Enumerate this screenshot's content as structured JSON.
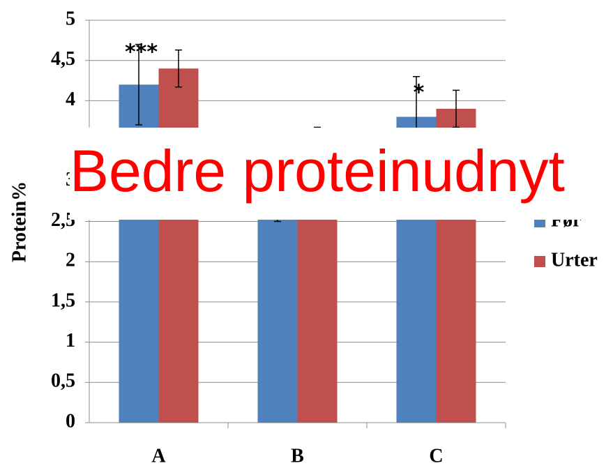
{
  "chart_data": {
    "type": "bar",
    "y_label": "Protein%",
    "categories": [
      "A",
      "B",
      "C"
    ],
    "series": [
      {
        "name": "Før",
        "color": "#4f81bd",
        "values": [
          4.2,
          3.0,
          3.8
        ],
        "errors": [
          0.5,
          0.5,
          0.5
        ]
      },
      {
        "name": "Urter",
        "color": "#c0504d",
        "values": [
          4.4,
          3.1,
          3.9
        ],
        "errors": [
          0.23,
          0.57,
          0.23
        ]
      }
    ],
    "annotations": [
      "***",
      "*",
      "*"
    ],
    "ylim": [
      0,
      5
    ],
    "yticks": [
      {
        "value": 0,
        "label": "0"
      },
      {
        "value": 0.5,
        "label": "0,5"
      },
      {
        "value": 1,
        "label": "1"
      },
      {
        "value": 1.5,
        "label": "1,5"
      },
      {
        "value": 2,
        "label": "2"
      },
      {
        "value": 2.5,
        "label": "2,5"
      },
      {
        "value": 3,
        "label": "3"
      },
      {
        "value": 4,
        "label": "4"
      },
      {
        "value": 4.5,
        "label": "4,5"
      },
      {
        "value": 5,
        "label": "5"
      }
    ],
    "grid": true,
    "legend": "right",
    "overlay_text": "Bedre proteinudnyt"
  }
}
